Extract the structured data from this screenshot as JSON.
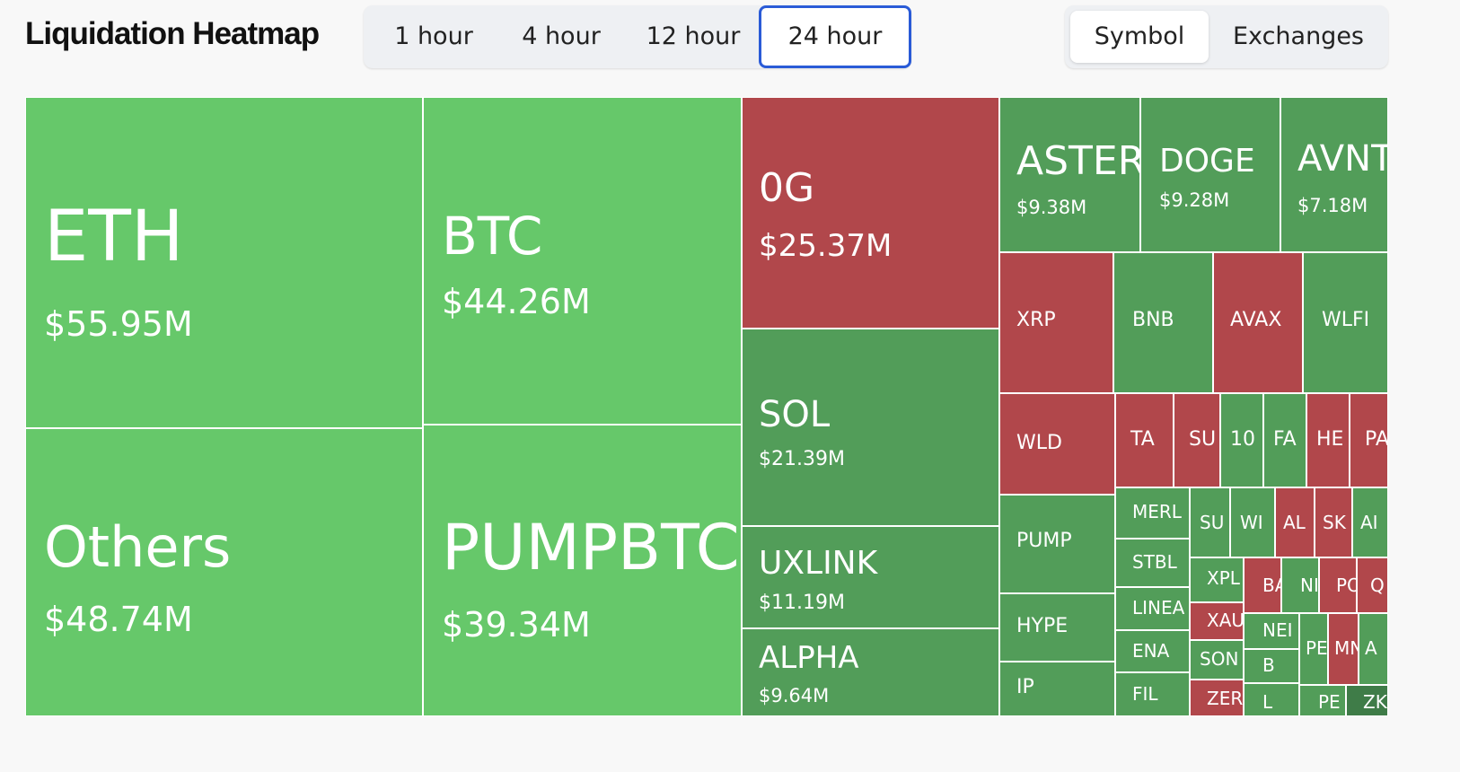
{
  "header": {
    "title": "Liquidation Heatmap"
  },
  "time_tabs": [
    {
      "label": "1 hour",
      "active": false
    },
    {
      "label": "4 hour",
      "active": false
    },
    {
      "label": "12 hour",
      "active": false
    },
    {
      "label": "24 hour",
      "active": true
    }
  ],
  "view_tabs": [
    {
      "label": "Symbol",
      "active": true
    },
    {
      "label": "Exchanges",
      "active": false
    }
  ],
  "colors": {
    "long_liquidation_light": "#66c86a",
    "long_liquidation_dark": "#529d59",
    "short_liquidation_red": "#b1474b",
    "darkest_green": "#3f7c48"
  },
  "heatmap": {
    "tiles": [
      {
        "symbol": "ETH",
        "value": "$55.95M"
      },
      {
        "symbol": "Others",
        "value": "$48.74M"
      },
      {
        "symbol": "BTC",
        "value": "$44.26M"
      },
      {
        "symbol": "PUMPBTC",
        "value": "$39.34M"
      },
      {
        "symbol": "0G",
        "value": "$25.37M"
      },
      {
        "symbol": "SOL",
        "value": "$21.39M"
      },
      {
        "symbol": "UXLINK",
        "value": "$11.19M"
      },
      {
        "symbol": "ALPHA",
        "value": "$9.64M"
      },
      {
        "symbol": "ASTER",
        "value": "$9.38M"
      },
      {
        "symbol": "DOGE",
        "value": "$9.28M"
      },
      {
        "symbol": "AVNT",
        "value": "$7.18M"
      },
      {
        "symbol": "XRP",
        "value": ""
      },
      {
        "symbol": "BNB",
        "value": ""
      },
      {
        "symbol": "AVAX",
        "value": ""
      },
      {
        "symbol": "WLFI",
        "value": ""
      },
      {
        "symbol": "WLD",
        "value": ""
      },
      {
        "symbol": "PUMP",
        "value": ""
      },
      {
        "symbol": "HYPE",
        "value": ""
      },
      {
        "symbol": "IP",
        "value": ""
      },
      {
        "symbol": "TA",
        "value": ""
      },
      {
        "symbol": "SU",
        "value": ""
      },
      {
        "symbol": "10",
        "value": ""
      },
      {
        "symbol": "FA",
        "value": ""
      },
      {
        "symbol": "HE",
        "value": ""
      },
      {
        "symbol": "PA",
        "value": ""
      },
      {
        "symbol": "MERL",
        "value": ""
      },
      {
        "symbol": "STBL",
        "value": ""
      },
      {
        "symbol": "LINEA",
        "value": ""
      },
      {
        "symbol": "ENA",
        "value": ""
      },
      {
        "symbol": "FIL",
        "value": ""
      },
      {
        "symbol": "SU",
        "value": ""
      },
      {
        "symbol": "WI",
        "value": ""
      },
      {
        "symbol": "AL",
        "value": ""
      },
      {
        "symbol": "SK",
        "value": ""
      },
      {
        "symbol": "AI",
        "value": ""
      },
      {
        "symbol": "XPL",
        "value": ""
      },
      {
        "symbol": "XAU",
        "value": ""
      },
      {
        "symbol": "SON",
        "value": ""
      },
      {
        "symbol": "ZER",
        "value": ""
      },
      {
        "symbol": "BA",
        "value": ""
      },
      {
        "symbol": "NI",
        "value": ""
      },
      {
        "symbol": "PO",
        "value": ""
      },
      {
        "symbol": "Q",
        "value": ""
      },
      {
        "symbol": "NEI",
        "value": ""
      },
      {
        "symbol": "PEN",
        "value": ""
      },
      {
        "symbol": "MNT",
        "value": ""
      },
      {
        "symbol": "A",
        "value": ""
      },
      {
        "symbol": "B",
        "value": ""
      },
      {
        "symbol": "L",
        "value": ""
      },
      {
        "symbol": "PE",
        "value": ""
      },
      {
        "symbol": "ZK",
        "value": ""
      }
    ]
  }
}
